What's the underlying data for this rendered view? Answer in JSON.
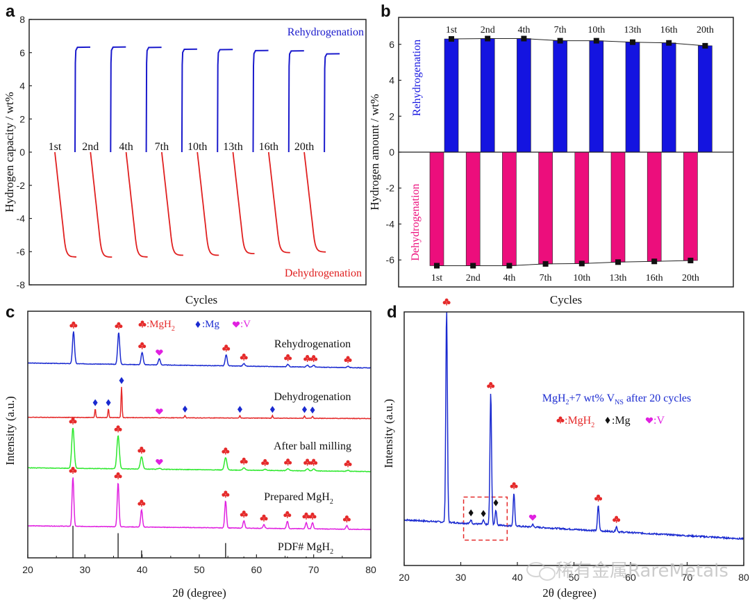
{
  "chart_data": [
    {
      "panel": "a",
      "type": "line",
      "ylabel": "Hydrogen capacity / wt%",
      "xlabel": "Cycles",
      "ylim": [
        -8,
        8
      ],
      "yticks": [
        "8",
        "6",
        "4",
        "2",
        "0",
        "-2",
        "-4",
        "-6",
        "-8"
      ],
      "annotations": {
        "rehydrogenation": "Rehydrogenation",
        "dehydrogenation": "Dehydrogenation"
      },
      "cycle_labels": [
        "1st",
        "2nd",
        "4th",
        "7th",
        "10th",
        "13th",
        "16th",
        "20th"
      ],
      "rehydrogenation_plateau": [
        6.32,
        6.33,
        6.31,
        6.2,
        6.18,
        6.12,
        6.1,
        5.92
      ],
      "dehydrogenation_plateau": [
        -6.32,
        -6.33,
        -6.32,
        -6.22,
        -6.22,
        -6.12,
        -6.06,
        -6.02
      ],
      "colors": {
        "rehydrogenation": "#1a1acc",
        "dehydrogenation": "#e02020"
      }
    },
    {
      "panel": "b",
      "type": "bar",
      "ylabel": "Hydrogen amount / wt%",
      "xlabel": "Cycles",
      "ylim": [
        -7.5,
        7.5
      ],
      "yticks": [
        "6",
        "4",
        "2",
        "0",
        "-2",
        "-4",
        "-6"
      ],
      "categories": [
        "1st",
        "2nd",
        "4th",
        "7th",
        "10th",
        "13th",
        "16th",
        "20th"
      ],
      "series": [
        {
          "name": "Rehydrogenation",
          "color": "#1414e0",
          "values": [
            6.3,
            6.32,
            6.32,
            6.2,
            6.2,
            6.12,
            6.08,
            5.92
          ]
        },
        {
          "name": "Dehydrogenation",
          "color": "#ec0e7c",
          "values": [
            -6.32,
            -6.32,
            -6.32,
            -6.22,
            -6.2,
            -6.12,
            -6.08,
            -6.03
          ]
        }
      ]
    },
    {
      "panel": "c",
      "type": "line",
      "xlabel": "2θ (degree)",
      "ylabel": "Intensity (a.u.)",
      "xlim": [
        20,
        80
      ],
      "xticks": [
        "20",
        "30",
        "40",
        "50",
        "60",
        "70",
        "80"
      ],
      "legend": [
        {
          "symbol": "♣",
          "label": ":MgH",
          "sub": "2",
          "color": "#e52a2a"
        },
        {
          "symbol": "♦",
          "label": ":Mg",
          "sub": "",
          "color": "#1a2ad0"
        },
        {
          "symbol": "♥",
          "label": ":V",
          "sub": "",
          "color": "#e020e0"
        }
      ],
      "series": [
        {
          "name": "Rehydrogenation",
          "color": "#1a2ad0",
          "baseline_start": 0.79,
          "baseline_end": 0.77,
          "peaks": [
            [
              28.0,
              0.13,
              "MgH2"
            ],
            [
              35.9,
              0.13,
              "MgH2"
            ],
            [
              40.0,
              0.05,
              "MgH2"
            ],
            [
              43.0,
              0.025,
              "V"
            ],
            [
              54.7,
              0.045,
              "MgH2"
            ],
            [
              57.8,
              0.01,
              "MgH2"
            ],
            [
              65.5,
              0.01,
              "MgH2"
            ],
            [
              68.9,
              0.008,
              "MgH2"
            ],
            [
              70.0,
              0.008,
              "MgH2"
            ],
            [
              76.0,
              0.006,
              "MgH2"
            ]
          ]
        },
        {
          "name": "Dehydrogenation",
          "color": "#e52a2a",
          "baseline_start": 0.57,
          "baseline_end": 0.565,
          "peaks": [
            [
              31.8,
              0.035,
              "Mg"
            ],
            [
              34.1,
              0.035,
              "Mg"
            ],
            [
              36.4,
              0.125,
              "Mg"
            ],
            [
              43.0,
              0.0,
              "V"
            ],
            [
              47.5,
              0.01,
              "Mg"
            ],
            [
              57.1,
              0.01,
              "Mg"
            ],
            [
              62.8,
              0.01,
              "Mg"
            ],
            [
              68.4,
              0.01,
              "Mg"
            ],
            [
              69.8,
              0.008,
              "Mg"
            ]
          ]
        },
        {
          "name": "After ball milling",
          "color": "#2de82d",
          "baseline_start": 0.365,
          "baseline_end": 0.35,
          "peaks": [
            [
              27.9,
              0.165,
              "MgH2"
            ],
            [
              35.8,
              0.135,
              "MgH2"
            ],
            [
              39.9,
              0.05,
              "MgH2"
            ],
            [
              43.0,
              0.004,
              "V"
            ],
            [
              54.6,
              0.05,
              "MgH2"
            ],
            [
              57.8,
              0.01,
              "MgH2"
            ],
            [
              61.5,
              0.005,
              "MgH2"
            ],
            [
              65.5,
              0.008,
              "MgH2"
            ],
            [
              68.9,
              0.008,
              "MgH2"
            ],
            [
              70.0,
              0.008,
              "MgH2"
            ],
            [
              76.0,
              0.004,
              "MgH2"
            ]
          ]
        },
        {
          "name": "Prepared MgH2",
          "label": "Prepared MgH",
          "sub": "2",
          "color": "#e020e0",
          "baseline_start": 0.13,
          "baseline_end": 0.115,
          "peaks": [
            [
              27.9,
              0.2,
              "MgH2"
            ],
            [
              35.8,
              0.18,
              "MgH2"
            ],
            [
              39.9,
              0.07,
              "MgH2"
            ],
            [
              54.6,
              0.11,
              "MgH2"
            ],
            [
              57.8,
              0.03,
              "MgH2"
            ],
            [
              61.3,
              0.015,
              "MgH2"
            ],
            [
              65.4,
              0.03,
              "MgH2"
            ],
            [
              68.7,
              0.025,
              "MgH2"
            ],
            [
              69.8,
              0.025,
              "MgH2"
            ],
            [
              75.8,
              0.015,
              "MgH2"
            ]
          ]
        }
      ],
      "reference": {
        "name": "PDF# MgH",
        "sub": "2",
        "color": "#333333",
        "lines": [
          [
            27.9,
            0.13
          ],
          [
            35.8,
            0.1
          ],
          [
            39.9,
            0.03
          ],
          [
            54.6,
            0.06
          ],
          [
            57.8,
            0.005
          ],
          [
            65.4,
            0.005
          ],
          [
            68.7,
            0.005
          ]
        ]
      }
    },
    {
      "panel": "d",
      "type": "line",
      "xlabel": "2θ (degree)",
      "ylabel": "Intensity (a.u.)",
      "xlim": [
        20,
        80
      ],
      "xticks": [
        "20",
        "30",
        "40",
        "50",
        "60",
        "70",
        "80"
      ],
      "title": "MgH₂+7 wt% V_NS after 20 cycles",
      "title_parts": {
        "a": "MgH",
        "a_sub": "2",
        "b": "+7 wt% V",
        "b_sub": "NS",
        "c": " after 20 cycles"
      },
      "legend": [
        {
          "symbol": "♣",
          "label": ":MgH",
          "sub": "2",
          "color": "#e52a2a"
        },
        {
          "symbol": "♦",
          "label": ":Mg",
          "sub": "",
          "color": "#111111"
        },
        {
          "symbol": "♥",
          "label": ":V",
          "sub": "",
          "color": "#e020e0"
        }
      ],
      "color": "#1a2ad0",
      "baseline_start": 0.18,
      "baseline_end": 0.105,
      "peaks": [
        [
          27.5,
          0.84,
          "MgH2"
        ],
        [
          35.3,
          0.52,
          "MgH2"
        ],
        [
          31.8,
          0.015,
          "Mg"
        ],
        [
          34.0,
          0.015,
          "Mg"
        ],
        [
          36.2,
          0.06,
          "Mg"
        ],
        [
          39.4,
          0.13,
          "MgH2"
        ],
        [
          42.7,
          0.01,
          "V"
        ],
        [
          54.3,
          0.1,
          "MgH2"
        ],
        [
          57.5,
          0.02,
          "MgH2"
        ]
      ],
      "highlight_box": {
        "x": [
          30.5,
          38.2
        ],
        "y": [
          0.1,
          0.27
        ],
        "color": "#e52a2a"
      }
    }
  ],
  "watermark": "稀有金属RareMetals",
  "panel_letters": [
    "a",
    "b",
    "c",
    "d"
  ]
}
